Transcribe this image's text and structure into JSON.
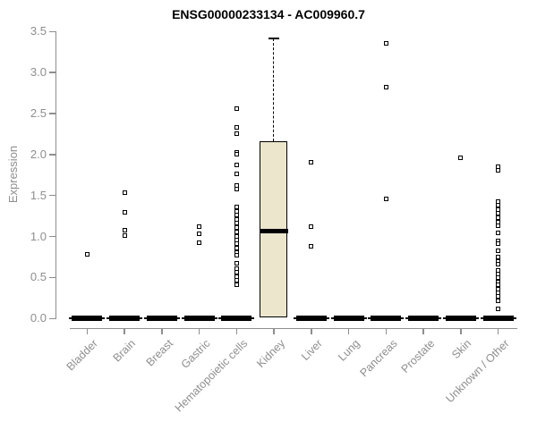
{
  "chart_data": {
    "type": "boxplot",
    "title": "ENSG00000233134 - AC009960.7",
    "ylabel": "Expression",
    "xlabel": "",
    "ylim": [
      0,
      3.5
    ],
    "ytick_labels": [
      "0.0",
      "0.5",
      "1.0",
      "1.5",
      "2.0",
      "2.5",
      "3.0",
      "3.5"
    ],
    "grid": false,
    "legend": false,
    "box_fill_color": "#ece6cd",
    "axis_color": "#8e8e8e",
    "box_line_color": "#000000",
    "categories": [
      "Bladder",
      "Brain",
      "Breast",
      "Gastric",
      "Hematopoietic cells",
      "Kidney",
      "Liver",
      "Lung",
      "Pancreas",
      "Prostate",
      "Skin",
      "Unknown / Other"
    ],
    "boxes": [
      {
        "category": "Bladder",
        "q1": 0,
        "median": 0,
        "q3": 0,
        "whisker_low": 0,
        "whisker_high": 0,
        "outliers": [
          0.78
        ]
      },
      {
        "category": "Brain",
        "q1": 0,
        "median": 0,
        "q3": 0,
        "whisker_low": 0,
        "whisker_high": 0,
        "outliers": [
          1.53,
          1.3,
          1.08,
          1.01
        ]
      },
      {
        "category": "Breast",
        "q1": 0,
        "median": 0,
        "q3": 0,
        "whisker_low": 0,
        "whisker_high": 0,
        "outliers": []
      },
      {
        "category": "Gastric",
        "q1": 0,
        "median": 0,
        "q3": 0,
        "whisker_low": 0,
        "whisker_high": 0,
        "outliers": [
          1.12,
          1.03,
          0.93
        ]
      },
      {
        "category": "Hematopoietic cells",
        "q1": 0,
        "median": 0,
        "q3": 0,
        "whisker_low": 0,
        "whisker_high": 0,
        "outliers": [
          2.56,
          2.33,
          2.25,
          2.03,
          2.0,
          1.87,
          1.76,
          1.62,
          1.58,
          1.36,
          1.31,
          1.26,
          1.21,
          1.16,
          1.11,
          1.06,
          1.0,
          0.96,
          0.91,
          0.86,
          0.81,
          0.77,
          0.67,
          0.61,
          0.56,
          0.51,
          0.47,
          0.41
        ]
      },
      {
        "category": "Kidney",
        "q1": 0.0,
        "median": 1.07,
        "q3": 2.16,
        "whisker_low": 0.0,
        "whisker_high": 3.42,
        "outliers": []
      },
      {
        "category": "Liver",
        "q1": 0,
        "median": 0,
        "q3": 0,
        "whisker_low": 0,
        "whisker_high": 0,
        "outliers": [
          1.91,
          1.12,
          0.88
        ]
      },
      {
        "category": "Lung",
        "q1": 0,
        "median": 0,
        "q3": 0,
        "whisker_low": 0,
        "whisker_high": 0,
        "outliers": []
      },
      {
        "category": "Pancreas",
        "q1": 0,
        "median": 0,
        "q3": 0,
        "whisker_low": 0,
        "whisker_high": 0,
        "outliers": [
          3.36,
          2.82,
          1.46
        ]
      },
      {
        "category": "Prostate",
        "q1": 0,
        "median": 0,
        "q3": 0,
        "whisker_low": 0,
        "whisker_high": 0,
        "outliers": []
      },
      {
        "category": "Skin",
        "q1": 0,
        "median": 0,
        "q3": 0,
        "whisker_low": 0,
        "whisker_high": 0,
        "outliers": [
          1.96
        ]
      },
      {
        "category": "Unknown / Other",
        "q1": 0,
        "median": 0,
        "q3": 0,
        "whisker_low": 0,
        "whisker_high": 0,
        "outliers": [
          1.85,
          1.81,
          1.43,
          1.38,
          1.33,
          1.28,
          1.23,
          1.18,
          1.13,
          1.05,
          0.95,
          0.91,
          0.83,
          0.75,
          0.7,
          0.66,
          0.59,
          0.54,
          0.5,
          0.45,
          0.41,
          0.36,
          0.31,
          0.27,
          0.22,
          0.12
        ]
      }
    ]
  }
}
